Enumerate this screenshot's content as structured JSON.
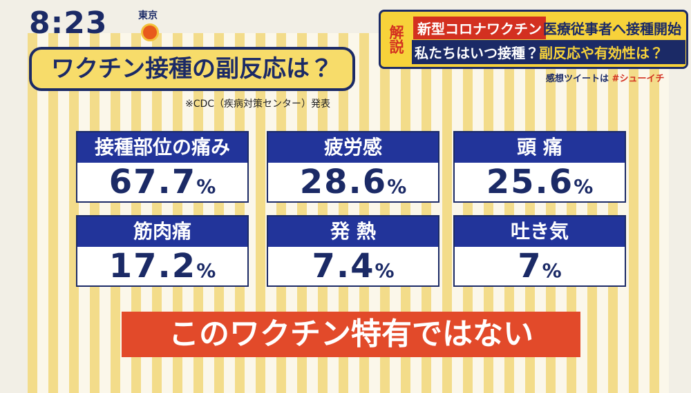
{
  "clock": {
    "time": "8:23",
    "location": "東京"
  },
  "banner": {
    "badge": "解説",
    "tag": "新型コロナワクチン",
    "line1": "医療従事者へ接種開始",
    "line2_a": "私たちはいつ接種？",
    "line2_b": "副反応や有効性は？",
    "hashtag_prefix": "感想ツイートは",
    "hashtag": "#シューイチ"
  },
  "title": "ワクチン接種の副反応は？",
  "source": "※CDC（疾病対策センター）発表",
  "cards": [
    {
      "label": "接種部位の痛み",
      "value": "67.7",
      "unit": "%"
    },
    {
      "label": "疲労感",
      "value": "28.6",
      "unit": "%"
    },
    {
      "label": "頭 痛",
      "value": "25.6",
      "unit": "%"
    },
    {
      "label": "筋肉痛",
      "value": "17.2",
      "unit": "%"
    },
    {
      "label": "発 熱",
      "value": "7.4",
      "unit": "%"
    },
    {
      "label": "吐き気",
      "value": "7",
      "unit": "%"
    }
  ],
  "footer": "このワクチン特有ではない"
}
